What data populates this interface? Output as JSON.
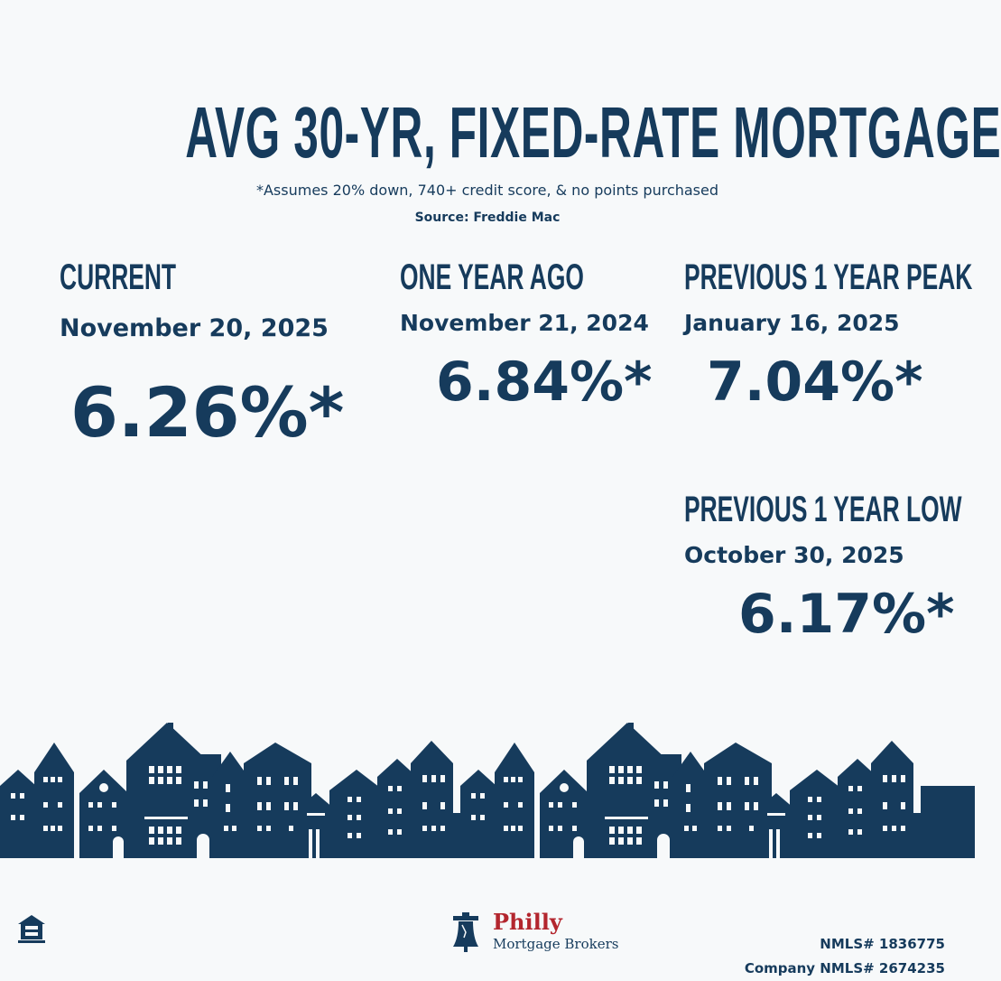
{
  "header": {
    "title": "AVG 30-YR, FIXED-RATE MORTGAGE",
    "subtitle": "*Assumes 20% down, 740+ credit score, & no points purchased",
    "source": "Source: Freddie Mac"
  },
  "current": {
    "label": "CURRENT",
    "date": "November 20, 2025",
    "rate": "6.26%*"
  },
  "one_year_ago": {
    "label": "ONE YEAR AGO",
    "date": "November 21, 2024",
    "rate": "6.84%*"
  },
  "peak": {
    "label": "PREVIOUS 1 YEAR PEAK",
    "date": "January 16, 2025",
    "rate": "7.04%*"
  },
  "low": {
    "label": "PREVIOUS 1 YEAR LOW",
    "date": "October 30, 2025",
    "rate": "6.17%*"
  },
  "footer": {
    "brand_name": "Philly",
    "brand_sub": "Mortgage Brokers",
    "nmls": "NMLS# 1836775",
    "company_nmls": "Company NMLS# 2674235",
    "eho_icon": "equal-housing-opportunity-icon",
    "logo_icon": "liberty-bell-icon"
  },
  "colors": {
    "navy": "#163b5c",
    "background": "#f7f9fa",
    "brand_red": "#b3262e"
  }
}
